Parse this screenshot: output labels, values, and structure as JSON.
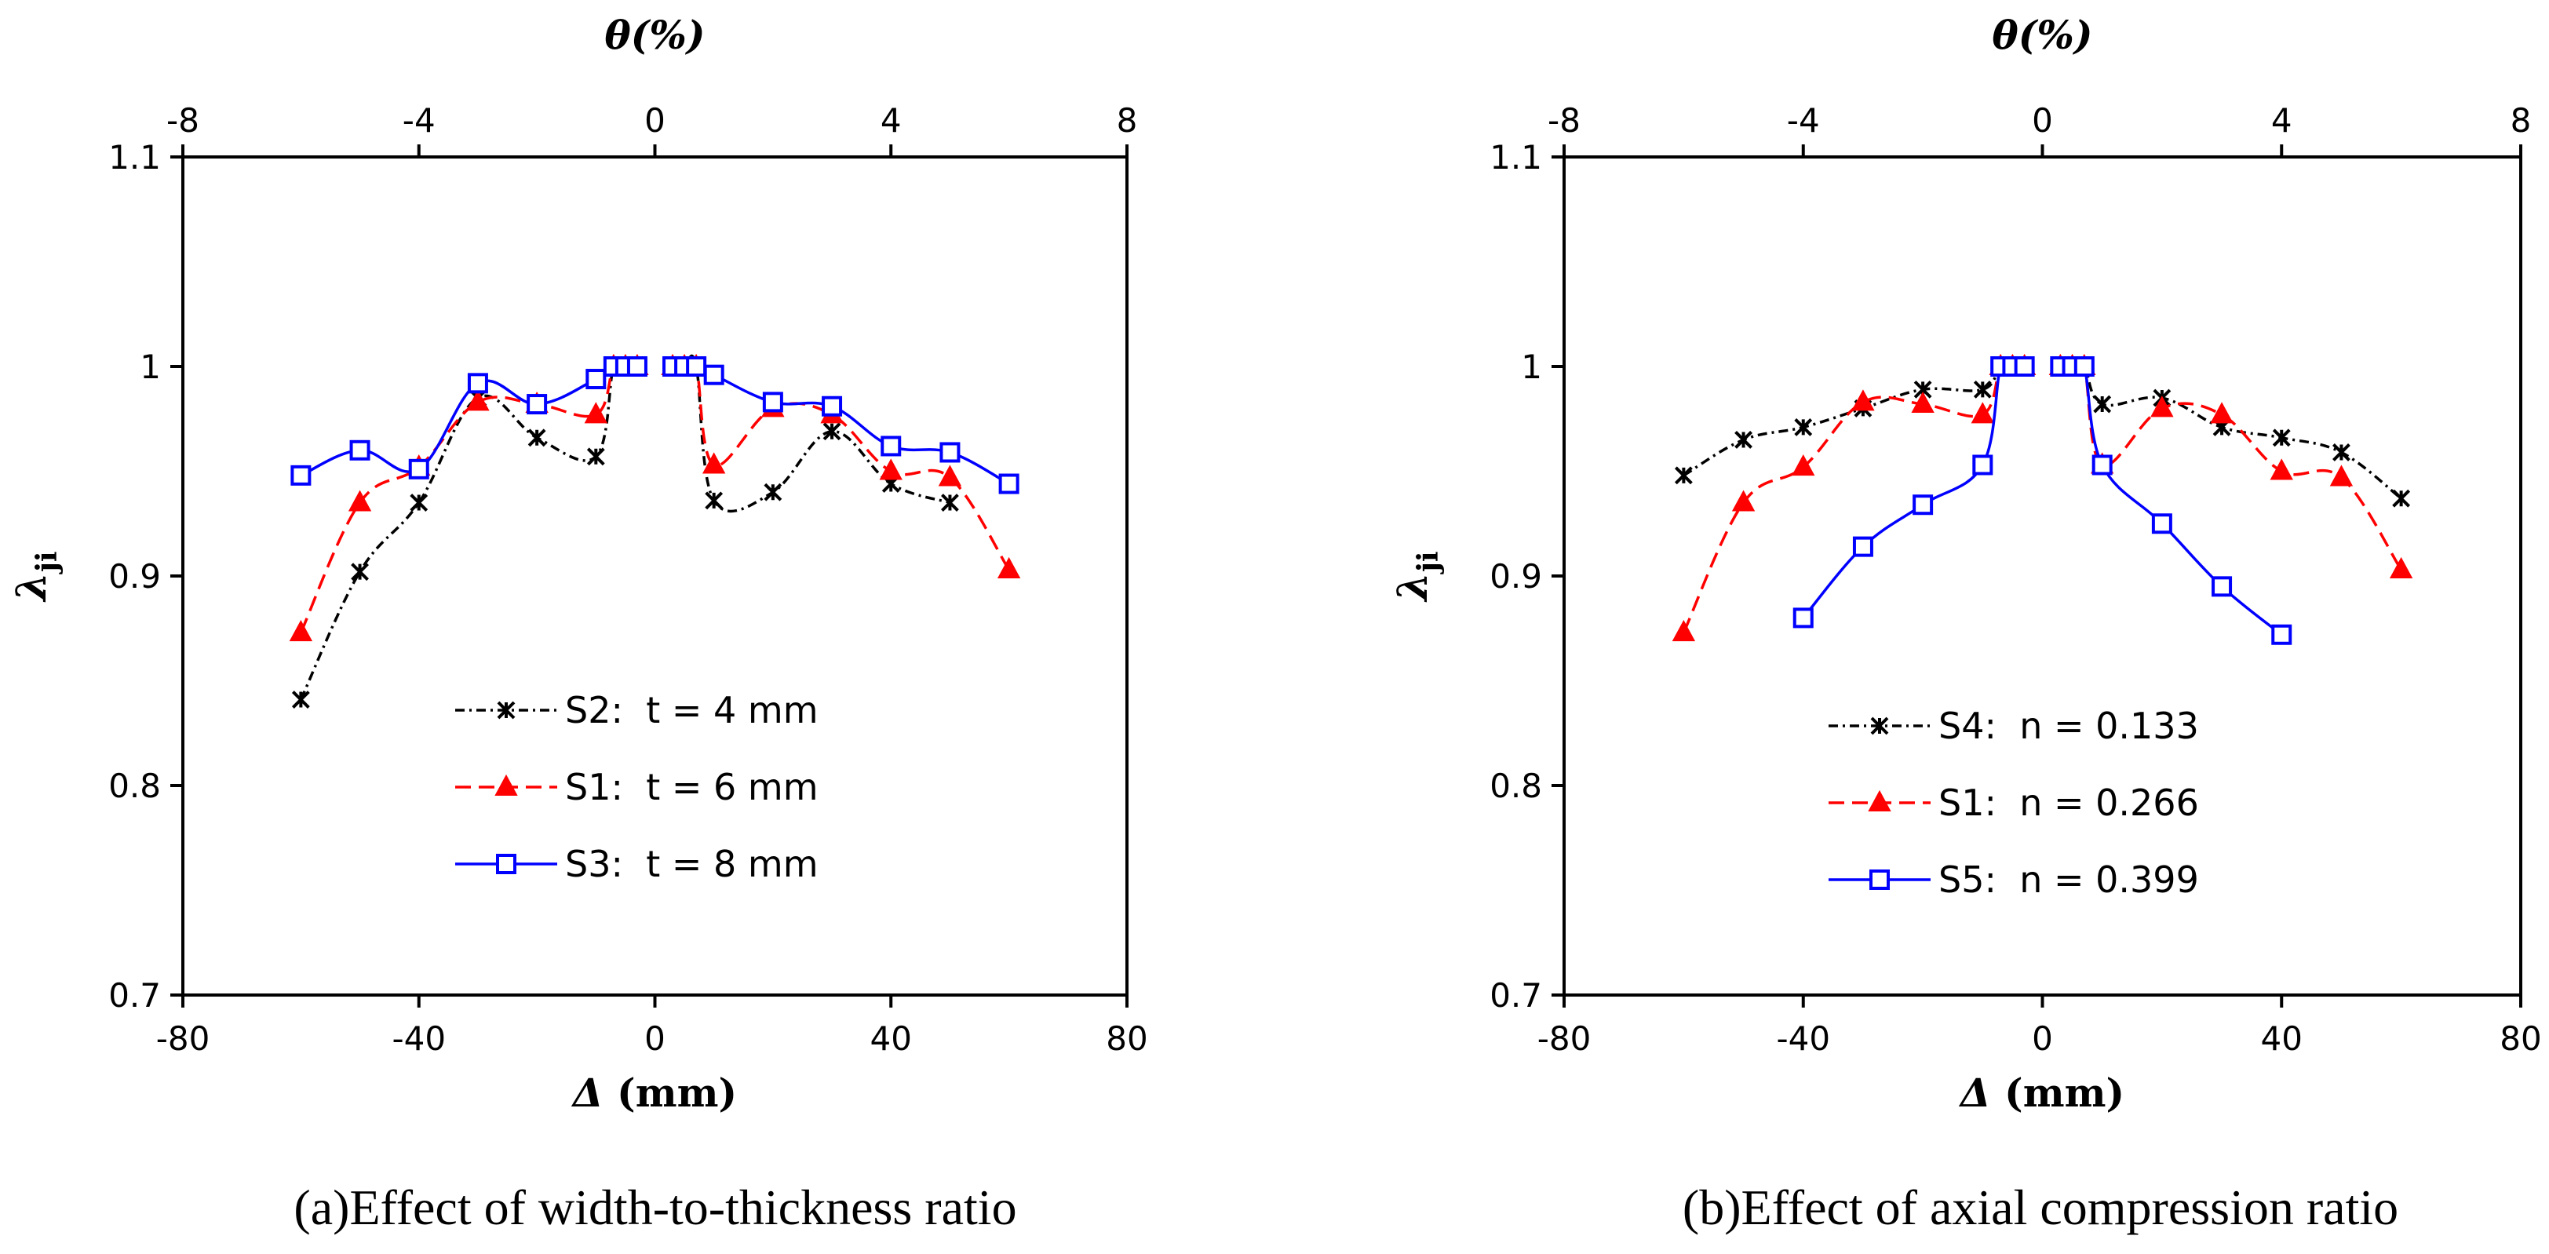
{
  "chart_data": [
    {
      "type": "line",
      "caption": "(a)Effect of width-to-thickness ratio",
      "xlabel_var": "Δ",
      "xlabel_unit": " (mm)",
      "ylabel_var": "λ",
      "ylabel_sub": "ji",
      "xlim": [
        -80,
        80
      ],
      "ylim": [
        0.7,
        1.1
      ],
      "xticks": [
        -80,
        -40,
        0,
        40,
        80
      ],
      "yticks": [
        0.7,
        0.8,
        0.9,
        1,
        1.1
      ],
      "x2label": "θ(%)",
      "x2lim": [
        -8,
        8
      ],
      "x2ticks": [
        -8,
        -4,
        0,
        4,
        8
      ],
      "grid": false,
      "legend_position": "lower-center",
      "series": [
        {
          "name": "S2:  t = 4 mm",
          "color": "#000000",
          "dash": "12,6,3,6",
          "marker": "asterisk",
          "x": [
            -60,
            -50,
            -40,
            -30,
            -20,
            -10,
            -7,
            -5,
            -3,
            3,
            5,
            7,
            10,
            20,
            30,
            40,
            50
          ],
          "y": [
            0.841,
            0.902,
            0.935,
            0.985,
            0.966,
            0.957,
            1.0,
            1.0,
            1.0,
            1.0,
            1.0,
            1.0,
            0.936,
            0.94,
            0.969,
            0.944,
            0.935
          ]
        },
        {
          "name": "S1:  t = 6 mm",
          "color": "#ff0000",
          "dash": "20,10",
          "marker": "triangle",
          "x": [
            -60,
            -50,
            -40,
            -30,
            -20,
            -10,
            -7,
            -5,
            -3,
            3,
            5,
            7,
            10,
            20,
            30,
            40,
            50,
            60
          ],
          "y": [
            0.873,
            0.935,
            0.952,
            0.983,
            0.982,
            0.977,
            1.0,
            1.0,
            1.0,
            1.0,
            1.0,
            1.0,
            0.953,
            0.98,
            0.977,
            0.95,
            0.947,
            0.903
          ]
        },
        {
          "name": "S3:  t = 8 mm",
          "color": "#0000ff",
          "dash": "",
          "marker": "square",
          "x": [
            -60,
            -50,
            -40,
            -30,
            -20,
            -10,
            -7,
            -5,
            -3,
            3,
            5,
            7,
            10,
            20,
            30,
            40,
            50,
            60
          ],
          "y": [
            0.948,
            0.96,
            0.951,
            0.992,
            0.982,
            0.994,
            1.0,
            1.0,
            1.0,
            1.0,
            1.0,
            1.0,
            0.996,
            0.983,
            0.981,
            0.962,
            0.959,
            0.944
          ]
        }
      ]
    },
    {
      "type": "line",
      "caption": "(b)Effect of axial compression ratio",
      "xlabel_var": "Δ",
      "xlabel_unit": " (mm)",
      "ylabel_var": "λ",
      "ylabel_sub": "ji",
      "xlim": [
        -80,
        80
      ],
      "ylim": [
        0.7,
        1.1
      ],
      "xticks": [
        -80,
        -40,
        0,
        40,
        80
      ],
      "yticks": [
        0.7,
        0.8,
        0.9,
        1,
        1.1
      ],
      "x2label": "θ(%)",
      "x2lim": [
        -8,
        8
      ],
      "x2ticks": [
        -8,
        -4,
        0,
        4,
        8
      ],
      "grid": false,
      "legend_position": "lower-center",
      "series": [
        {
          "name": "S4:  n = 0.133",
          "color": "#000000",
          "dash": "12,6,3,6",
          "marker": "asterisk",
          "x": [
            -60,
            -50,
            -40,
            -30,
            -20,
            -10,
            -7,
            -5,
            -3,
            3,
            5,
            7,
            10,
            20,
            30,
            40,
            50,
            60
          ],
          "y": [
            0.948,
            0.965,
            0.971,
            0.98,
            0.989,
            0.989,
            1.0,
            1.0,
            1.0,
            1.0,
            1.0,
            1.0,
            0.982,
            0.985,
            0.971,
            0.966,
            0.959,
            0.937
          ]
        },
        {
          "name": "S1:  n = 0.266",
          "color": "#ff0000",
          "dash": "20,10",
          "marker": "triangle",
          "x": [
            -60,
            -50,
            -40,
            -30,
            -20,
            -10,
            -7,
            -5,
            -3,
            3,
            5,
            7,
            10,
            20,
            30,
            40,
            50,
            60
          ],
          "y": [
            0.873,
            0.935,
            0.952,
            0.983,
            0.982,
            0.977,
            1.0,
            1.0,
            1.0,
            1.0,
            1.0,
            1.0,
            0.953,
            0.98,
            0.977,
            0.95,
            0.947,
            0.903
          ]
        },
        {
          "name": "S5:  n = 0.399",
          "color": "#0000ff",
          "dash": "",
          "marker": "square",
          "x": [
            -40,
            -30,
            -20,
            -10,
            -7,
            -5,
            -3,
            3,
            5,
            7,
            10,
            20,
            30,
            40
          ],
          "y": [
            0.88,
            0.914,
            0.934,
            0.953,
            1.0,
            1.0,
            1.0,
            1.0,
            1.0,
            1.0,
            0.953,
            0.925,
            0.895,
            0.872
          ]
        }
      ]
    }
  ]
}
